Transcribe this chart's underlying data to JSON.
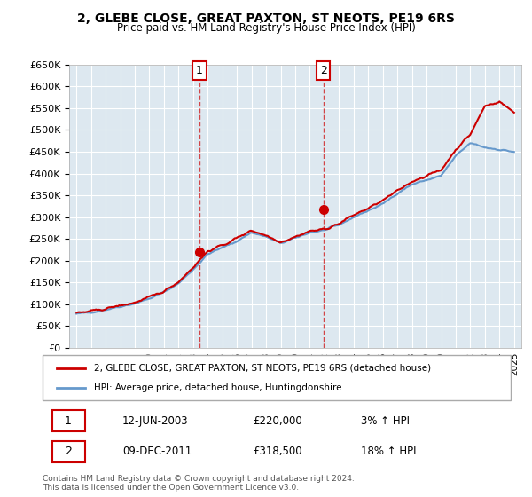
{
  "title": "2, GLEBE CLOSE, GREAT PAXTON, ST NEOTS, PE19 6RS",
  "subtitle": "Price paid vs. HM Land Registry's House Price Index (HPI)",
  "line1_label": "2, GLEBE CLOSE, GREAT PAXTON, ST NEOTS, PE19 6RS (detached house)",
  "line2_label": "HPI: Average price, detached house, Huntingdonshire",
  "sale1_label": "1",
  "sale1_date": "12-JUN-2003",
  "sale1_price": "£220,000",
  "sale1_hpi": "3% ↑ HPI",
  "sale2_label": "2",
  "sale2_date": "09-DEC-2011",
  "sale2_price": "£318,500",
  "sale2_hpi": "18% ↑ HPI",
  "footer": "Contains HM Land Registry data © Crown copyright and database right 2024.\nThis data is licensed under the Open Government Licence v3.0.",
  "line1_color": "#cc0000",
  "line2_color": "#6699cc",
  "sale_marker_color": "#cc0000",
  "grid_bg": "#dde8f0",
  "ylim": [
    0,
    650000
  ],
  "yticks": [
    0,
    50000,
    100000,
    150000,
    200000,
    250000,
    300000,
    350000,
    400000,
    450000,
    500000,
    550000,
    600000,
    650000
  ],
  "xlim_start": 1994.5,
  "xlim_end": 2025.5,
  "sale1_x": 2003.44,
  "sale1_y": 220000,
  "sale2_x": 2011.92,
  "sale2_y": 318500,
  "hpi_years": [
    1995,
    1996,
    1997,
    1998,
    1999,
    2000,
    2001,
    2002,
    2003,
    2004,
    2005,
    2006,
    2007,
    2008,
    2009,
    2010,
    2011,
    2012,
    2013,
    2014,
    2015,
    2016,
    2017,
    2018,
    2019,
    2020,
    2021,
    2022,
    2023,
    2024,
    2025
  ],
  "hpi_values": [
    78000,
    82000,
    88000,
    95000,
    102000,
    113000,
    128000,
    148000,
    180000,
    215000,
    230000,
    245000,
    265000,
    255000,
    240000,
    252000,
    265000,
    270000,
    282000,
    300000,
    315000,
    330000,
    355000,
    375000,
    385000,
    395000,
    440000,
    470000,
    460000,
    455000,
    450000
  ],
  "price_years": [
    1995,
    1996,
    1997,
    1998,
    1999,
    2000,
    2001,
    2002,
    2003,
    2004,
    2005,
    2006,
    2007,
    2008,
    2009,
    2010,
    2011,
    2012,
    2013,
    2014,
    2015,
    2016,
    2017,
    2018,
    2019,
    2020,
    2021,
    2022,
    2023,
    2024,
    2025
  ],
  "price_values": [
    80000,
    84000,
    90000,
    97000,
    104000,
    116000,
    130000,
    152000,
    185000,
    222000,
    235000,
    252000,
    270000,
    258000,
    243000,
    255000,
    268000,
    272000,
    285000,
    305000,
    320000,
    338000,
    360000,
    382000,
    395000,
    408000,
    455000,
    490000,
    555000,
    565000,
    540000
  ]
}
